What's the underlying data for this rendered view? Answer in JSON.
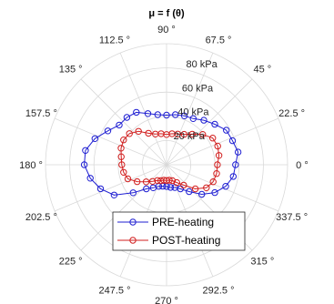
{
  "chart_data": {
    "type": "polar-line",
    "title_prefix": "μ",
    "title_rest": " = f (θ)",
    "angle_unit_suffix": " °",
    "angle_ticks": [
      0,
      22.5,
      45,
      67.5,
      90,
      112.5,
      135,
      157.5,
      180,
      202.5,
      225,
      247.5,
      270,
      292.5,
      315,
      337.5
    ],
    "radial_ticks": [
      20,
      40,
      60,
      80
    ],
    "radial_tick_labels": [
      "20 kPa",
      "40 kPa",
      "60 kPa",
      "80 kPa"
    ],
    "rlim": [
      0,
      100
    ],
    "grid": true,
    "legend_position": "bottom-center",
    "series": [
      {
        "name": "PRE-heating",
        "color": "#1f1fd2",
        "theta": [
          0,
          10,
          20,
          30,
          40,
          50,
          60,
          70,
          80,
          90,
          100,
          110,
          120,
          130,
          140,
          150,
          160,
          170,
          180,
          190,
          200,
          210,
          220,
          230,
          240,
          250,
          260,
          270,
          280,
          290,
          300,
          310,
          320,
          330,
          340,
          350
        ],
        "r": [
          57,
          60,
          58,
          57,
          52,
          48,
          44,
          43,
          42,
          41,
          42,
          45,
          50,
          51,
          51,
          56,
          63,
          68,
          68,
          64,
          58,
          50,
          36,
          26,
          22,
          19,
          18,
          18,
          19,
          20,
          23,
          29,
          38,
          46,
          52,
          56
        ]
      },
      {
        "name": "POST-heating",
        "color": "#d21f1f",
        "theta": [
          0,
          10,
          20,
          30,
          40,
          50,
          60,
          70,
          80,
          90,
          100,
          110,
          120,
          130,
          140,
          150,
          160,
          170,
          180,
          190,
          200,
          210,
          220,
          230,
          240,
          250,
          260,
          270,
          280,
          290,
          300,
          310,
          320,
          330,
          340,
          350
        ],
        "r": [
          42,
          44,
          45,
          44,
          39,
          33,
          29,
          27,
          26,
          25,
          26,
          27,
          30,
          36,
          40,
          41,
          40,
          38,
          37,
          36,
          34,
          28,
          22,
          18,
          15,
          14,
          13,
          13,
          13,
          14,
          17,
          22,
          31,
          38,
          41,
          42
        ]
      }
    ]
  }
}
